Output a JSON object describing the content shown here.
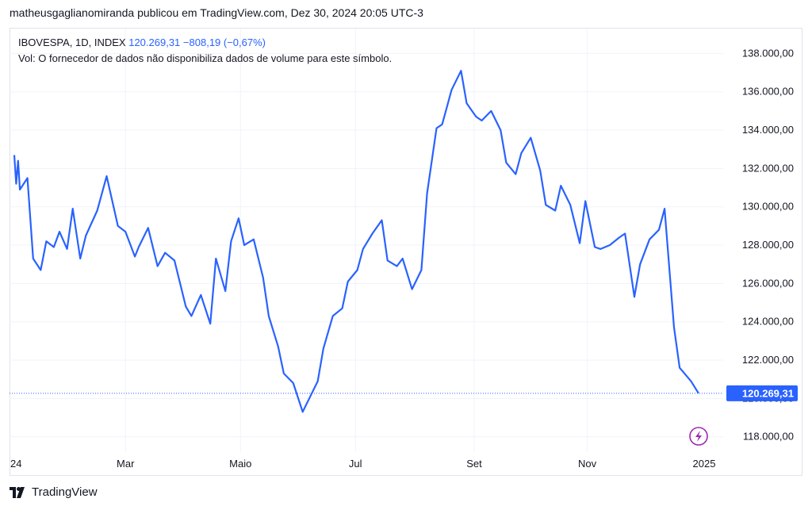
{
  "attribution": "matheusgaglianomiranda publicou em TradingView.com, Dez 30, 2024 20:05 UTC-3",
  "legend": {
    "symbol": "IBOVESPA, 1D, INDEX",
    "value": "120.269,31",
    "change": "−808,19 (−0,67%)",
    "volume_note": "Vol: O fornecedor de dados não disponibiliza dados de volume para este símbolo."
  },
  "footer": {
    "logo_text": "TV",
    "brand": "TradingView"
  },
  "colors": {
    "line": "#2962ff",
    "grid": "#f0f3fa",
    "label_bg": "#2962ff",
    "icon": "#9c27b0"
  },
  "icons": {
    "flash": "lightning-icon"
  },
  "chart_data": {
    "type": "line",
    "title": "IBOVESPA, 1D, INDEX",
    "xlabel": "",
    "ylabel": "",
    "ylim": [
      117200,
      139300
    ],
    "y_ticks": [
      118000,
      120000,
      122000,
      124000,
      126000,
      128000,
      130000,
      132000,
      134000,
      136000,
      138000
    ],
    "y_tick_labels": [
      "118.000,00",
      "120.000,00",
      "122.000,00",
      "124.000,00",
      "126.000,00",
      "128.000,00",
      "130.000,00",
      "132.000,00",
      "134.000,00",
      "136.000,00",
      "138.000,00"
    ],
    "x_ticks": [
      {
        "label": "24",
        "date": "2024-01-02"
      },
      {
        "label": "Mar",
        "date": "2024-03-01"
      },
      {
        "label": "Maio",
        "date": "2024-05-01"
      },
      {
        "label": "Jul",
        "date": "2024-07-01"
      },
      {
        "label": "Set",
        "date": "2024-09-02"
      },
      {
        "label": "Nov",
        "date": "2024-11-01"
      },
      {
        "label": "2025",
        "date": "2025-01-02"
      }
    ],
    "last_price": 120269.31,
    "last_price_label": "120.269,31",
    "grid": true,
    "series": [
      {
        "dates": [
          "2024-01-02",
          "2024-01-03",
          "2024-01-04",
          "2024-01-05",
          "2024-01-09",
          "2024-01-12",
          "2024-01-16",
          "2024-01-19",
          "2024-01-23",
          "2024-01-26",
          "2024-01-30",
          "2024-02-02",
          "2024-02-06",
          "2024-02-09",
          "2024-02-15",
          "2024-02-20",
          "2024-02-26",
          "2024-03-01",
          "2024-03-06",
          "2024-03-08",
          "2024-03-13",
          "2024-03-18",
          "2024-03-22",
          "2024-03-27",
          "2024-04-02",
          "2024-04-05",
          "2024-04-10",
          "2024-04-15",
          "2024-04-18",
          "2024-04-23",
          "2024-04-26",
          "2024-04-30",
          "2024-05-03",
          "2024-05-08",
          "2024-05-13",
          "2024-05-16",
          "2024-05-21",
          "2024-05-24",
          "2024-05-29",
          "2024-06-03",
          "2024-06-06",
          "2024-06-11",
          "2024-06-14",
          "2024-06-19",
          "2024-06-24",
          "2024-06-27",
          "2024-07-02",
          "2024-07-05",
          "2024-07-10",
          "2024-07-15",
          "2024-07-18",
          "2024-07-23",
          "2024-07-26",
          "2024-07-31",
          "2024-08-05",
          "2024-08-08",
          "2024-08-13",
          "2024-08-16",
          "2024-08-21",
          "2024-08-26",
          "2024-08-29",
          "2024-09-03",
          "2024-09-06",
          "2024-09-11",
          "2024-09-16",
          "2024-09-19",
          "2024-09-24",
          "2024-09-27",
          "2024-10-02",
          "2024-10-07",
          "2024-10-10",
          "2024-10-15",
          "2024-10-18",
          "2024-10-23",
          "2024-10-28",
          "2024-10-31",
          "2024-11-05",
          "2024-11-08",
          "2024-11-13",
          "2024-11-18",
          "2024-11-21",
          "2024-11-26",
          "2024-11-29",
          "2024-12-04",
          "2024-12-09",
          "2024-12-12",
          "2024-12-17",
          "2024-12-20",
          "2024-12-26",
          "2024-12-30"
        ],
        "values": [
          132700,
          131200,
          132400,
          130900,
          131500,
          127300,
          126700,
          128200,
          127900,
          128700,
          127800,
          129900,
          127300,
          128500,
          129800,
          131600,
          129000,
          128700,
          127400,
          127900,
          128900,
          126900,
          127600,
          127200,
          124800,
          124300,
          125400,
          123900,
          127300,
          125600,
          128200,
          129400,
          128000,
          128300,
          126300,
          124300,
          122700,
          121300,
          120800,
          119300,
          119900,
          120900,
          122600,
          124300,
          124700,
          126100,
          126700,
          127800,
          128600,
          129300,
          127200,
          126900,
          127300,
          125700,
          126700,
          130700,
          134100,
          134300,
          136100,
          137100,
          135400,
          134700,
          134500,
          135000,
          134000,
          132300,
          131700,
          132800,
          133600,
          131900,
          130100,
          129800,
          131100,
          130100,
          128100,
          130300,
          127900,
          127800,
          128000,
          128400,
          128600,
          125300,
          127000,
          128300,
          128800,
          129900,
          123700,
          121600,
          120900,
          120269
        ]
      }
    ]
  }
}
